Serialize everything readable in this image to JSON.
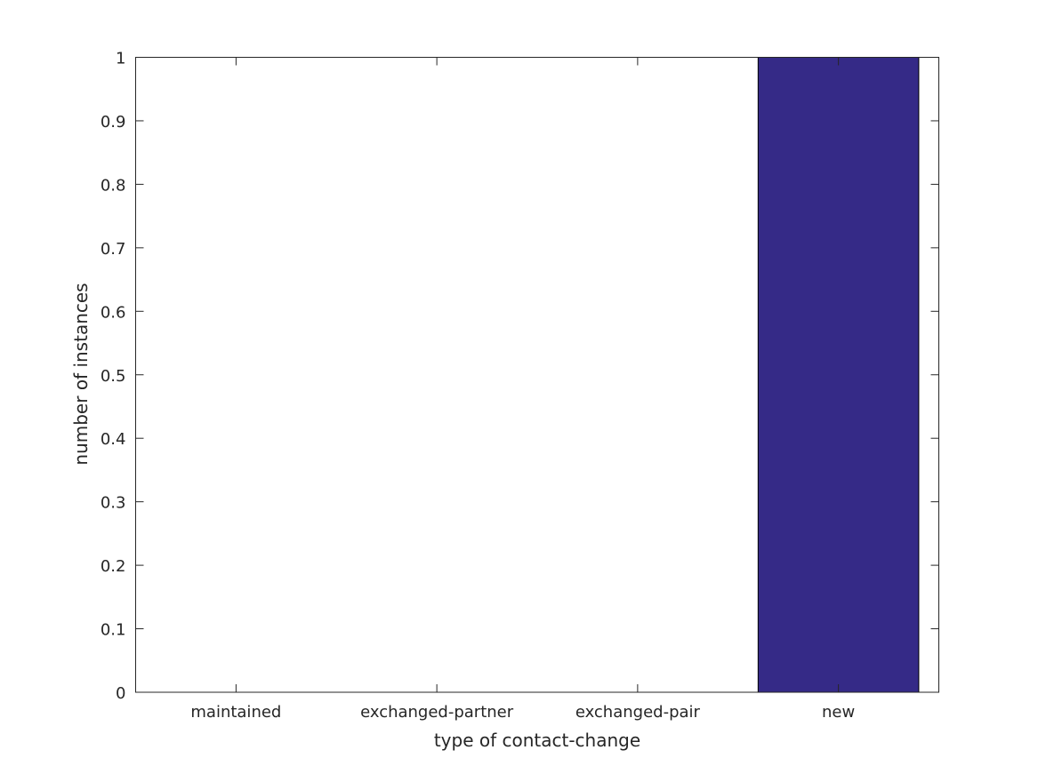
{
  "chart_data": {
    "type": "bar",
    "categories": [
      "maintained",
      "exchanged-partner",
      "exchanged-pair",
      "new"
    ],
    "values": [
      0,
      0,
      0,
      1
    ],
    "title": "",
    "xlabel": "type of contact-change",
    "ylabel": "number of instances",
    "ylim": [
      0,
      1
    ],
    "yticks": [
      0,
      0.1,
      0.2,
      0.3,
      0.4,
      0.5,
      0.6,
      0.7,
      0.8,
      0.9,
      1
    ],
    "ytick_labels": [
      "0",
      "0.1",
      "0.2",
      "0.3",
      "0.4",
      "0.5",
      "0.6",
      "0.7",
      "0.8",
      "0.9",
      "1"
    ],
    "grid": false,
    "bar_color": "#352a87",
    "axis_color": "#262626"
  }
}
